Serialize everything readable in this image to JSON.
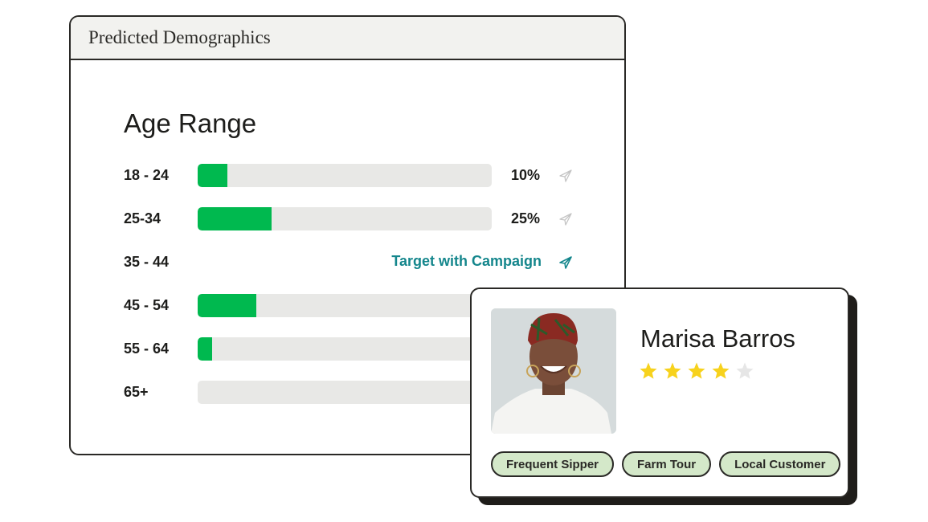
{
  "panel": {
    "header_title": "Predicted Demographics",
    "section_title": "Age Range",
    "rows": [
      {
        "label": "18 - 24",
        "percent": 10,
        "percent_label": "10%",
        "send_icon": "paper-plane-icon"
      },
      {
        "label": "25-34",
        "percent": 25,
        "percent_label": "25%",
        "send_icon": "paper-plane-icon"
      },
      {
        "label": "35 - 44",
        "cta": "Target with Campaign",
        "send_icon": "paper-plane-icon"
      },
      {
        "label": "45 - 54",
        "percent": 20
      },
      {
        "label": "55 - 64",
        "percent": 5
      },
      {
        "label": "65+",
        "percent": 0
      }
    ],
    "colors": {
      "bar_fill": "#00b94f",
      "bar_track": "#e8e8e6",
      "cta": "#14868c"
    }
  },
  "profile": {
    "name": "Marisa Barros",
    "rating": 4,
    "rating_max": 5,
    "tags": [
      "Frequent Sipper",
      "Farm Tour",
      "Local Customer"
    ],
    "colors": {
      "star": "#f7d21d",
      "star_empty": "#e6e6e6",
      "tag_bg": "#d4e8c9"
    }
  }
}
